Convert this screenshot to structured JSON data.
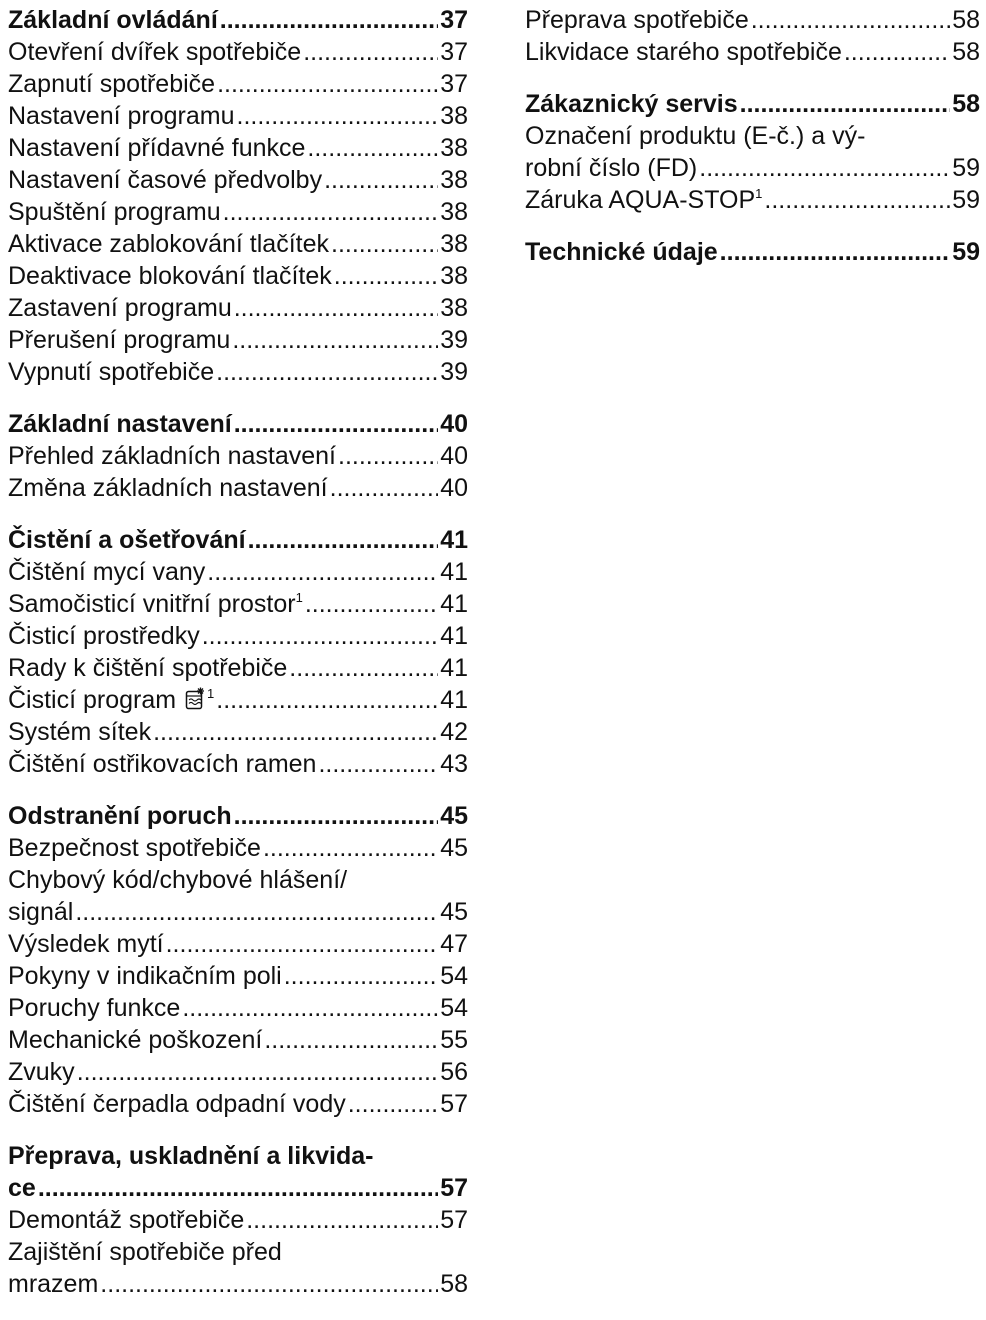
{
  "toc": {
    "left": {
      "sec_operation": {
        "title": "Základní ovládání",
        "page": "37",
        "items": [
          {
            "label": "Otevření dvířek spotřebiče",
            "page": "37"
          },
          {
            "label": "Zapnutí spotřebiče",
            "page": "37"
          },
          {
            "label": "Nastavení programu",
            "page": "38"
          },
          {
            "label": "Nastavení přídavné funkce",
            "page": "38"
          },
          {
            "label": "Nastavení časové předvolby",
            "page": "38"
          },
          {
            "label": "Spuštění programu",
            "page": "38"
          },
          {
            "label": "Aktivace zablokování tlačítek",
            "page": "38"
          },
          {
            "label": "Deaktivace blokování tlačítek",
            "page": "38"
          },
          {
            "label": "Zastavení programu",
            "page": "38"
          },
          {
            "label": "Přerušení programu",
            "page": "39"
          },
          {
            "label": "Vypnutí spotřebiče",
            "page": "39"
          }
        ]
      },
      "sec_settings": {
        "title": "Základní nastavení",
        "page": "40",
        "items": [
          {
            "label": "Přehled základních nastavení",
            "page": "40"
          },
          {
            "label": "Změna základních nastavení",
            "page": "40"
          }
        ]
      },
      "sec_cleaning": {
        "title": "Čistění a ošetřování",
        "page": "41",
        "items": [
          {
            "label": "Čištění mycí vany",
            "page": "41"
          },
          {
            "label": "Samočisticí vnitřní prostor",
            "sup": "1",
            "page": "41"
          },
          {
            "label": "Čisticí prostředky",
            "page": "41"
          },
          {
            "label": "Rady k čištění spotřebiče",
            "page": "41"
          },
          {
            "label": "Čisticí program",
            "sup": "1",
            "icon": "machine-care-icon",
            "page": "41"
          },
          {
            "label": "Systém sítek",
            "page": "42"
          },
          {
            "label": "Čištění ostřikovacích ramen",
            "page": "43"
          }
        ]
      },
      "sec_troubleshooting": {
        "title": "Odstranění poruch",
        "page": "45",
        "items": [
          {
            "label": "Bezpečnost spotřebiče",
            "page": "45"
          },
          {
            "line1": "Chybový kód/chybové hlášení/",
            "label": "signál",
            "page": "45"
          },
          {
            "label": "Výsledek mytí",
            "page": "47"
          },
          {
            "label": "Pokyny v indikačním poli",
            "page": "54"
          },
          {
            "label": "Poruchy funkce",
            "page": "54"
          },
          {
            "label": "Mechanické poškození",
            "page": "55"
          },
          {
            "label": "Zvuky",
            "page": "56"
          },
          {
            "label": "Čištění čerpadla odpadní vody",
            "page": "57"
          }
        ]
      },
      "sec_transport": {
        "title_line1": "Přeprava, uskladnění a likvida-",
        "title_line2": "ce",
        "page": "57",
        "items": [
          {
            "label": "Demontáž spotřebiče",
            "page": "57"
          },
          {
            "line1": "Zajištění spotřebiče před",
            "label": "mrazem",
            "page": "58"
          }
        ]
      }
    },
    "right": {
      "sec_transport_cont": {
        "items": [
          {
            "label": "Přeprava spotřebiče",
            "page": "58"
          },
          {
            "label": "Likvidace starého spotřebiče",
            "page": "58"
          }
        ]
      },
      "sec_service": {
        "title": "Zákaznický servis",
        "page": "58",
        "items": [
          {
            "line1": "Označení produktu (E-č.) a vý-",
            "label": "robní číslo (FD)",
            "page": "59"
          },
          {
            "label": "Záruka AQUA-STOP",
            "sup": "1",
            "page": "59"
          }
        ]
      },
      "sec_technical": {
        "title": "Technické údaje",
        "page": "59"
      }
    }
  }
}
